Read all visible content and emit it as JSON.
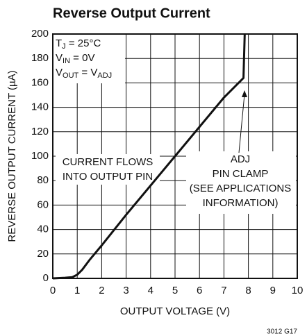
{
  "chart_data": {
    "type": "line",
    "title": "Reverse Output Current",
    "x_label": "OUTPUT VOLTAGE (V)",
    "y_label": "REVERSE OUTPUT CURRENT (µA)",
    "xlim": [
      0,
      10
    ],
    "xticks": [
      0,
      1,
      2,
      3,
      4,
      5,
      6,
      7,
      8,
      9,
      10
    ],
    "ylim": [
      0,
      200
    ],
    "yticks": [
      0,
      20,
      40,
      60,
      80,
      100,
      120,
      140,
      160,
      180,
      200
    ],
    "grid": true,
    "conditions": [
      [
        "T",
        "J",
        " = 25°C"
      ],
      [
        "V",
        "IN",
        " = 0V"
      ],
      [
        "V",
        "OUT",
        " = V",
        "ADJ"
      ]
    ],
    "annotations": [
      [
        "CURRENT FLOWS",
        "INTO OUTPUT PIN"
      ],
      [
        "ADJ",
        "PIN CLAMP",
        "(SEE APPLICATIONS",
        "INFORMATION)"
      ]
    ],
    "footnote": "3012 G17",
    "series": [
      {
        "color": "#111111",
        "x": [
          0,
          0.5,
          0.8,
          1.0,
          1.2,
          1.5,
          2,
          3,
          4,
          5,
          6,
          7,
          7.8,
          7.85
        ],
        "values": [
          0,
          0.5,
          1,
          3,
          7,
          15,
          27,
          52,
          76,
          100,
          124,
          148,
          164,
          200
        ]
      }
    ]
  }
}
